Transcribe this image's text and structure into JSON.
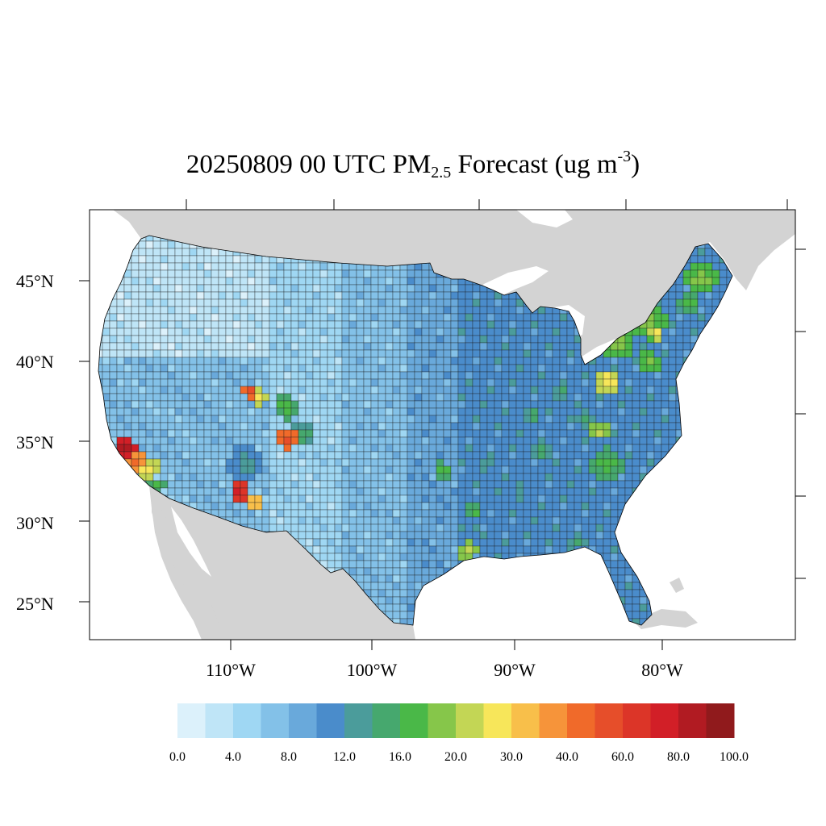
{
  "title": {
    "main": "20250809 00 UTC PM",
    "sub": "2.5",
    "rest": " Forecast (ug m",
    "sup": "-3",
    "close": ")"
  },
  "axes": {
    "lat_labels": [
      "45°N",
      "40°N",
      "35°N",
      "30°N",
      "25°N"
    ],
    "lon_labels": [
      "110°W",
      "100°W",
      "90°W",
      "80°W"
    ]
  },
  "colorbar": {
    "colors": [
      "#dcf1fb",
      "#bfe5f7",
      "#9fd7f3",
      "#83c1e8",
      "#69a9db",
      "#4a8ccb",
      "#4b9c9b",
      "#46a86e",
      "#4ab848",
      "#86c64a",
      "#c3d655",
      "#f7e65a",
      "#f8bf4a",
      "#f6943a",
      "#f06a2a",
      "#e64e2a",
      "#dc3528",
      "#d21f27",
      "#b11b22",
      "#901a1c"
    ],
    "labels": [
      "0.0",
      "4.0",
      "8.0",
      "12.0",
      "16.0",
      "20.0",
      "30.0",
      "40.0",
      "60.0",
      "80.0",
      "100.0"
    ]
  },
  "map": {
    "land_background": "#d3d3d3",
    "water": "#ffffff",
    "border": "#000000"
  }
}
